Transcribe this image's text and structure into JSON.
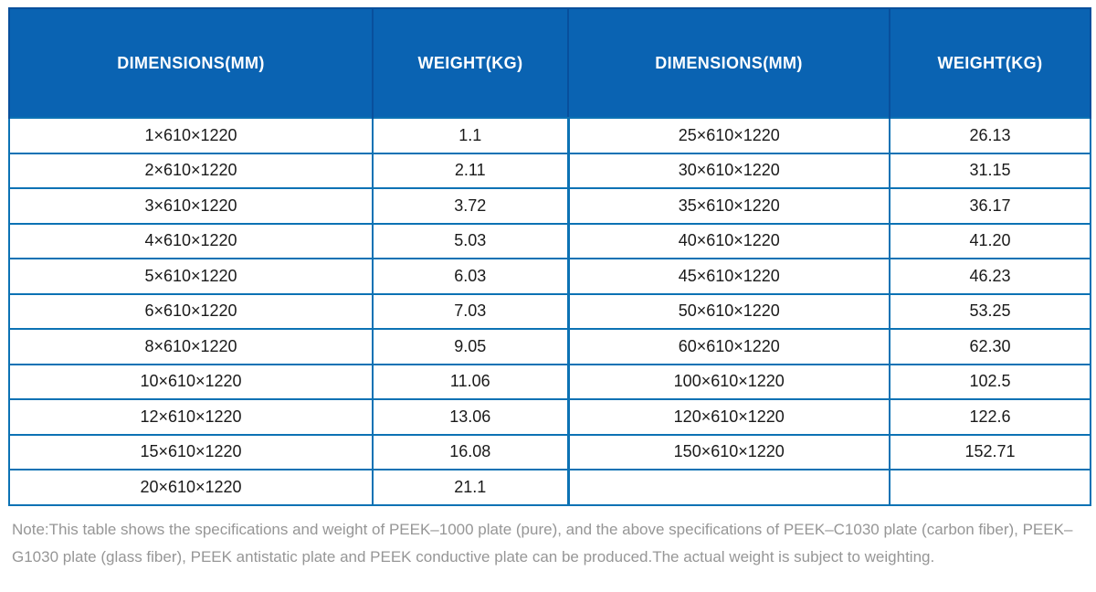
{
  "table": {
    "headers": [
      "DIMENSIONS(MM)",
      "WEIGHT(KG)",
      "DIMENSIONS(MM)",
      "WEIGHT(KG)"
    ],
    "rows": [
      [
        "1×610×1220",
        "1.1",
        "25×610×1220",
        "26.13"
      ],
      [
        "2×610×1220",
        "2.11",
        "30×610×1220",
        "31.15"
      ],
      [
        "3×610×1220",
        "3.72",
        "35×610×1220",
        "36.17"
      ],
      [
        "4×610×1220",
        "5.03",
        "40×610×1220",
        "41.20"
      ],
      [
        "5×610×1220",
        "6.03",
        "45×610×1220",
        "46.23"
      ],
      [
        "6×610×1220",
        "7.03",
        "50×610×1220",
        "53.25"
      ],
      [
        "8×610×1220",
        "9.05",
        "60×610×1220",
        "62.30"
      ],
      [
        "10×610×1220",
        "11.06",
        "100×610×1220",
        "102.5"
      ],
      [
        "12×610×1220",
        "13.06",
        "120×610×1220",
        "122.6"
      ],
      [
        "15×610×1220",
        "16.08",
        "150×610×1220",
        "152.71"
      ],
      [
        "20×610×1220",
        "21.1",
        "",
        ""
      ]
    ]
  },
  "note": "Note:This table shows the specifications and weight of PEEK–1000 plate (pure), and the above specifications of PEEK–C1030 plate (carbon fiber), PEEK–G1030 plate (glass fiber), PEEK antistatic plate and PEEK conductive plate can be produced.The actual weight is subject to weighting.",
  "colors": {
    "header_bg": "#0a63b2",
    "header_divider": "#084f9c",
    "gridline": "#0c72b4",
    "body_text": "#1a1a1a",
    "note_text": "#969696"
  }
}
